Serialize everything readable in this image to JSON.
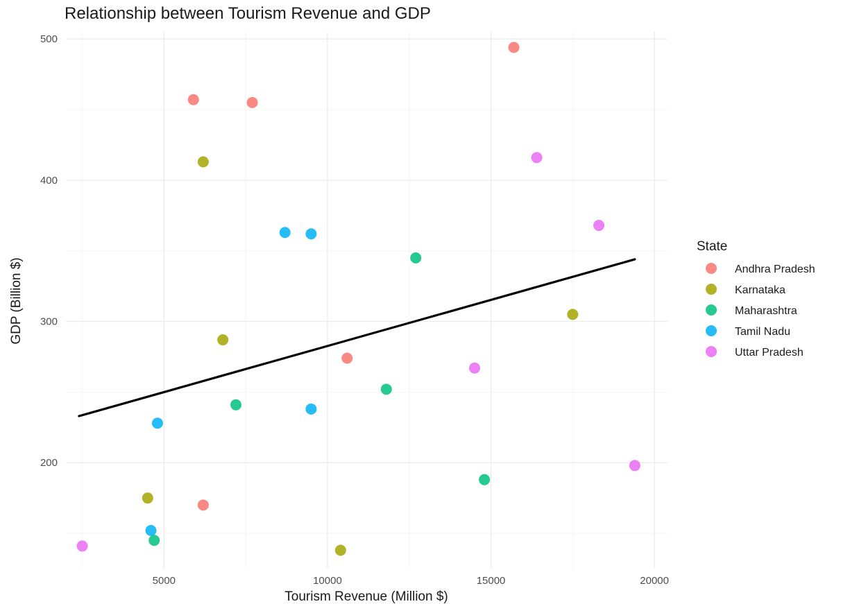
{
  "chart_data": {
    "type": "scatter",
    "title": "Relationship between Tourism Revenue and GDP",
    "xlabel": "Tourism Revenue (Million $)",
    "ylabel": "GDP (Billion $)",
    "xlim": [
      2000,
      20400
    ],
    "ylim": [
      125,
      505
    ],
    "x_ticks": [
      5000,
      10000,
      15000,
      20000
    ],
    "y_ticks": [
      200,
      300,
      400,
      500
    ],
    "grid": true,
    "legend": {
      "title": "State",
      "position": "right"
    },
    "series": [
      {
        "name": "Andhra Pradesh",
        "color": "#F8766D",
        "points": [
          [
            5900,
            457
          ],
          [
            7700,
            455
          ],
          [
            15700,
            494
          ],
          [
            10600,
            274
          ],
          [
            6200,
            170
          ]
        ]
      },
      {
        "name": "Karnataka",
        "color": "#A3A500",
        "points": [
          [
            6200,
            413
          ],
          [
            6800,
            287
          ],
          [
            17500,
            305
          ],
          [
            4500,
            175
          ],
          [
            10400,
            138
          ]
        ]
      },
      {
        "name": "Maharashtra",
        "color": "#00BF7D",
        "points": [
          [
            12700,
            345
          ],
          [
            11800,
            252
          ],
          [
            7200,
            241
          ],
          [
            14800,
            188
          ],
          [
            4700,
            145
          ]
        ]
      },
      {
        "name": "Tamil Nadu",
        "color": "#00B0F6",
        "points": [
          [
            8700,
            363
          ],
          [
            9500,
            362
          ],
          [
            9500,
            238
          ],
          [
            4800,
            228
          ],
          [
            4600,
            152
          ]
        ]
      },
      {
        "name": "Uttar Pradesh",
        "color": "#E76BF3",
        "points": [
          [
            16400,
            416
          ],
          [
            18300,
            368
          ],
          [
            14500,
            267
          ],
          [
            19400,
            198
          ],
          [
            2500,
            141
          ]
        ]
      }
    ],
    "trendline": {
      "type": "linear",
      "color": "#000000",
      "points": [
        [
          2400,
          233
        ],
        [
          19400,
          344
        ]
      ]
    }
  }
}
